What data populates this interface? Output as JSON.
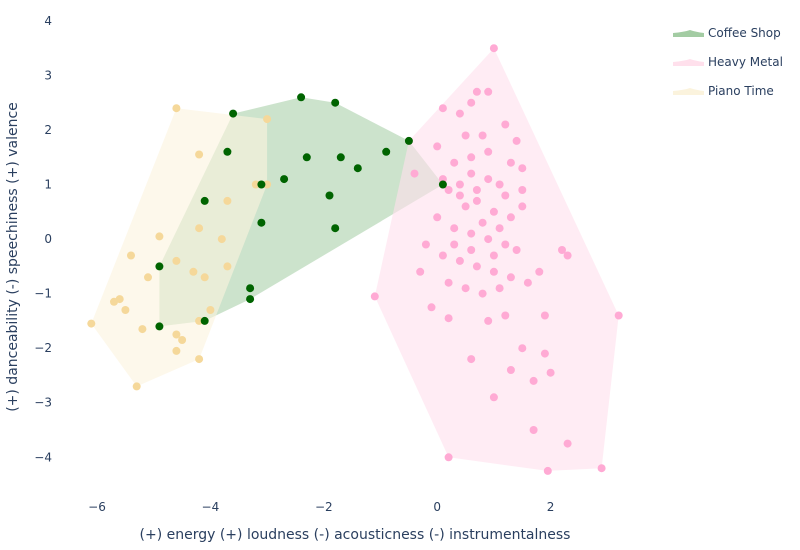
{
  "chart_data": {
    "type": "scatter",
    "xlabel": "(+) energy (+) loudness (-) acousticness (-) instrumentalness",
    "ylabel": "(+) danceability (-) speechiness (+) valence",
    "xlim": [
      -6.3,
      3.4
    ],
    "ylim": [
      -4.6,
      4.2
    ],
    "x_ticks": [
      -6,
      -4,
      -2,
      0,
      2
    ],
    "y_ticks": [
      -4,
      -3,
      -2,
      -1,
      0,
      1,
      2,
      3,
      4
    ],
    "grid": false,
    "legend": "top-right",
    "series": [
      {
        "name": "Coffee Shop",
        "color": "#006400",
        "hull_color": "#a3cca3",
        "hull": [
          [
            -4.9,
            -1.6
          ],
          [
            -4.1,
            -1.5
          ],
          [
            -3.3,
            -1.1
          ],
          [
            0.1,
            1.0
          ],
          [
            -0.5,
            1.8
          ],
          [
            -1.8,
            2.5
          ],
          [
            -2.4,
            2.6
          ],
          [
            -3.6,
            2.3
          ],
          [
            -4.9,
            -0.5
          ]
        ],
        "points": [
          [
            -4.9,
            -0.5
          ],
          [
            -4.9,
            -1.6
          ],
          [
            -4.1,
            -1.5
          ],
          [
            -4.1,
            0.7
          ],
          [
            -3.7,
            1.6
          ],
          [
            -3.6,
            2.3
          ],
          [
            -3.1,
            1.0
          ],
          [
            -3.1,
            0.3
          ],
          [
            -3.3,
            -0.9
          ],
          [
            -3.3,
            -1.1
          ],
          [
            -2.7,
            1.1
          ],
          [
            -2.4,
            2.6
          ],
          [
            -2.3,
            1.5
          ],
          [
            -1.9,
            0.8
          ],
          [
            -1.8,
            0.2
          ],
          [
            -1.7,
            1.5
          ],
          [
            -1.8,
            2.5
          ],
          [
            -1.4,
            1.3
          ],
          [
            -0.9,
            1.6
          ],
          [
            -0.5,
            1.8
          ],
          [
            0.1,
            1.0
          ]
        ]
      },
      {
        "name": "Heavy Metal",
        "color": "#ffaad4",
        "hull_color": "#ffe0ec",
        "hull": [
          [
            1.0,
            3.5
          ],
          [
            3.2,
            -1.4
          ],
          [
            2.9,
            -4.2
          ],
          [
            1.95,
            -4.25
          ],
          [
            0.2,
            -4.0
          ],
          [
            -1.1,
            -1.05
          ],
          [
            -0.5,
            1.8
          ]
        ],
        "points": [
          [
            1.0,
            3.5
          ],
          [
            -0.5,
            1.8
          ],
          [
            -1.1,
            -1.05
          ],
          [
            0.2,
            -4.0
          ],
          [
            1.95,
            -4.25
          ],
          [
            2.9,
            -4.2
          ],
          [
            3.2,
            -1.4
          ],
          [
            2.3,
            -3.75
          ],
          [
            1.7,
            -3.5
          ],
          [
            1.7,
            -2.6
          ],
          [
            2.0,
            -2.45
          ],
          [
            1.9,
            -2.1
          ],
          [
            1.0,
            -2.9
          ],
          [
            0.6,
            -2.2
          ],
          [
            1.3,
            -2.4
          ],
          [
            1.5,
            -2.0
          ],
          [
            0.2,
            -1.45
          ],
          [
            -0.1,
            -1.25
          ],
          [
            0.9,
            -1.5
          ],
          [
            1.2,
            -1.4
          ],
          [
            2.2,
            -0.2
          ],
          [
            2.3,
            -0.3
          ],
          [
            1.8,
            -0.6
          ],
          [
            1.9,
            -1.4
          ],
          [
            0.1,
            2.4
          ],
          [
            0.4,
            2.3
          ],
          [
            0.7,
            2.7
          ],
          [
            0.9,
            2.7
          ],
          [
            1.2,
            2.1
          ],
          [
            0.5,
            1.9
          ],
          [
            0.8,
            1.9
          ],
          [
            1.3,
            1.4
          ],
          [
            1.5,
            1.3
          ],
          [
            1.4,
            1.8
          ],
          [
            0.6,
            1.2
          ],
          [
            0.9,
            1.1
          ],
          [
            1.1,
            1.0
          ],
          [
            0.2,
            0.9
          ],
          [
            0.4,
            0.8
          ],
          [
            0.7,
            0.7
          ],
          [
            1.0,
            0.5
          ],
          [
            1.3,
            0.4
          ],
          [
            1.5,
            0.6
          ],
          [
            0.0,
            0.4
          ],
          [
            0.3,
            0.2
          ],
          [
            0.6,
            0.1
          ],
          [
            0.9,
            0.0
          ],
          [
            1.2,
            -0.1
          ],
          [
            1.4,
            -0.2
          ],
          [
            -0.2,
            -0.1
          ],
          [
            0.1,
            -0.3
          ],
          [
            0.4,
            -0.4
          ],
          [
            0.7,
            -0.5
          ],
          [
            1.0,
            -0.6
          ],
          [
            1.3,
            -0.7
          ],
          [
            -0.3,
            -0.6
          ],
          [
            0.2,
            -0.8
          ],
          [
            0.5,
            -0.9
          ],
          [
            0.8,
            -1.0
          ],
          [
            1.1,
            -0.9
          ],
          [
            1.6,
            -0.8
          ],
          [
            0.3,
            1.4
          ],
          [
            0.6,
            1.5
          ],
          [
            0.9,
            1.6
          ],
          [
            0.1,
            1.1
          ],
          [
            0.5,
            0.6
          ],
          [
            0.8,
            0.3
          ],
          [
            1.1,
            0.2
          ],
          [
            0.3,
            -0.1
          ],
          [
            0.6,
            -0.2
          ],
          [
            1.0,
            -0.3
          ],
          [
            0.4,
            1.0
          ],
          [
            0.7,
            0.9
          ],
          [
            1.2,
            0.8
          ],
          [
            1.5,
            0.9
          ],
          [
            0.0,
            1.7
          ],
          [
            0.6,
            2.5
          ],
          [
            -0.4,
            1.2
          ]
        ]
      },
      {
        "name": "Piano Time",
        "color": "#f5d89a",
        "hull_color": "#fbf3dd",
        "hull": [
          [
            -4.6,
            2.4
          ],
          [
            -3.0,
            2.2
          ],
          [
            -3.0,
            1.0
          ],
          [
            -4.2,
            -2.2
          ],
          [
            -5.3,
            -2.7
          ],
          [
            -6.1,
            -1.55
          ]
        ],
        "points": [
          [
            -4.6,
            2.4
          ],
          [
            -3.0,
            2.2
          ],
          [
            -3.0,
            1.0
          ],
          [
            -4.2,
            1.55
          ],
          [
            -4.9,
            0.05
          ],
          [
            -4.2,
            0.2
          ],
          [
            -3.8,
            0.0
          ],
          [
            -4.6,
            -0.4
          ],
          [
            -4.3,
            -0.6
          ],
          [
            -4.1,
            -0.7
          ],
          [
            -3.7,
            -0.5
          ],
          [
            -5.4,
            -0.3
          ],
          [
            -5.1,
            -0.7
          ],
          [
            -5.6,
            -1.1
          ],
          [
            -5.5,
            -1.3
          ],
          [
            -5.7,
            -1.15
          ],
          [
            -6.1,
            -1.55
          ],
          [
            -4.0,
            -1.3
          ],
          [
            -4.2,
            -1.5
          ],
          [
            -5.2,
            -1.65
          ],
          [
            -4.6,
            -1.75
          ],
          [
            -4.5,
            -1.85
          ],
          [
            -4.6,
            -2.05
          ],
          [
            -4.2,
            -2.2
          ],
          [
            -5.3,
            -2.7
          ],
          [
            -3.7,
            0.7
          ],
          [
            -3.2,
            1.0
          ]
        ]
      }
    ]
  }
}
